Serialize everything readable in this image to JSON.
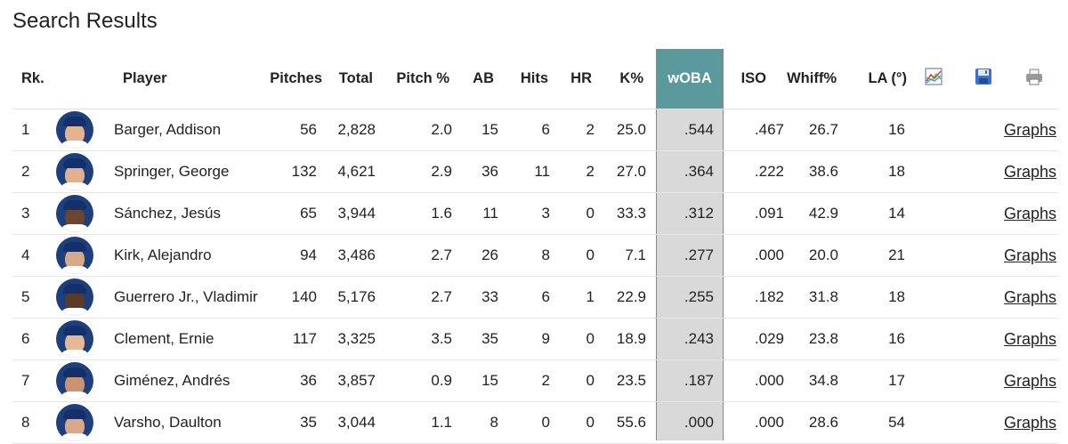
{
  "page_title": "Search Results",
  "headers": {
    "rk": "Rk.",
    "player": "Player",
    "pitches": "Pitches",
    "total": "Total",
    "pitch_pct": "Pitch %",
    "ab": "AB",
    "hits": "Hits",
    "hr": "HR",
    "k_pct": "K%",
    "woba": "wOBA",
    "iso": "ISO",
    "whiff_pct": "Whiff%",
    "la": "LA (°)"
  },
  "toolbar_icons": [
    "chart-icon",
    "save-icon",
    "print-icon"
  ],
  "colors": {
    "woba_header": "#5a9a9c",
    "woba_column": "#d9d9d9",
    "avatar_blue": "#1d3f7c"
  },
  "link_label": "Graphs",
  "rows": [
    {
      "rk": "1",
      "player": "Barger, Addison",
      "pitches": "56",
      "total": "2,828",
      "pitch_pct": "2.0",
      "ab": "15",
      "hits": "6",
      "hr": "2",
      "k_pct": "25.0",
      "woba": ".544",
      "iso": ".467",
      "whiff_pct": "26.7",
      "la": "16",
      "skin": "#e2b48f"
    },
    {
      "rk": "2",
      "player": "Springer, George",
      "pitches": "132",
      "total": "4,621",
      "pitch_pct": "2.9",
      "ab": "36",
      "hits": "11",
      "hr": "2",
      "k_pct": "27.0",
      "woba": ".364",
      "iso": ".222",
      "whiff_pct": "38.6",
      "la": "18",
      "skin": "#e0b090"
    },
    {
      "rk": "3",
      "player": "Sánchez, Jesús",
      "pitches": "65",
      "total": "3,944",
      "pitch_pct": "1.6",
      "ab": "11",
      "hits": "3",
      "hr": "0",
      "k_pct": "33.3",
      "woba": ".312",
      "iso": ".091",
      "whiff_pct": "42.9",
      "la": "14",
      "skin": "#6a4630"
    },
    {
      "rk": "4",
      "player": "Kirk, Alejandro",
      "pitches": "94",
      "total": "3,486",
      "pitch_pct": "2.7",
      "ab": "26",
      "hits": "8",
      "hr": "0",
      "k_pct": "7.1",
      "woba": ".277",
      "iso": ".000",
      "whiff_pct": "20.0",
      "la": "21",
      "skin": "#d8a987"
    },
    {
      "rk": "5",
      "player": "Guerrero Jr., Vladimir",
      "pitches": "140",
      "total": "5,176",
      "pitch_pct": "2.7",
      "ab": "33",
      "hits": "6",
      "hr": "1",
      "k_pct": "22.9",
      "woba": ".255",
      "iso": ".182",
      "whiff_pct": "31.8",
      "la": "18",
      "skin": "#5a3a28"
    },
    {
      "rk": "6",
      "player": "Clement, Ernie",
      "pitches": "117",
      "total": "3,325",
      "pitch_pct": "3.5",
      "ab": "35",
      "hits": "9",
      "hr": "0",
      "k_pct": "18.9",
      "woba": ".243",
      "iso": ".029",
      "whiff_pct": "23.8",
      "la": "16",
      "skin": "#e6b898"
    },
    {
      "rk": "7",
      "player": "Giménez, Andrés",
      "pitches": "36",
      "total": "3,857",
      "pitch_pct": "0.9",
      "ab": "15",
      "hits": "2",
      "hr": "0",
      "k_pct": "23.5",
      "woba": ".187",
      "iso": ".000",
      "whiff_pct": "34.8",
      "la": "17",
      "skin": "#c99270"
    },
    {
      "rk": "8",
      "player": "Varsho, Daulton",
      "pitches": "35",
      "total": "3,044",
      "pitch_pct": "1.1",
      "ab": "8",
      "hits": "0",
      "hr": "0",
      "k_pct": "55.6",
      "woba": ".000",
      "iso": ".000",
      "whiff_pct": "28.6",
      "la": "54",
      "skin": "#d9a888"
    }
  ]
}
